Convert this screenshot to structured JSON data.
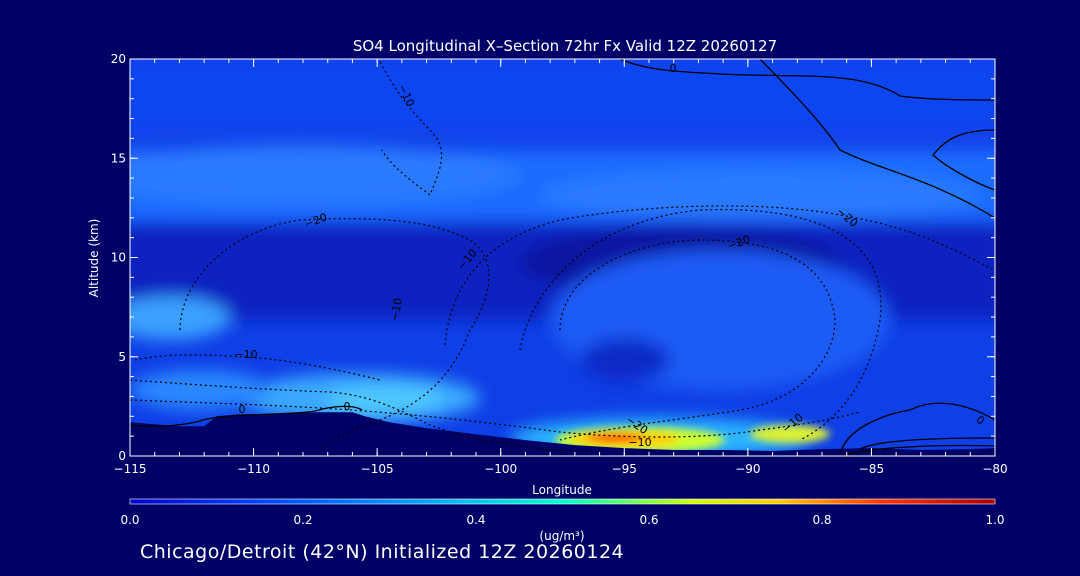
{
  "chart_data": {
    "type": "heatmap",
    "title": "SO4 Longitudinal X–Section 72hr  Fx Valid 12Z 20260127",
    "xlabel": "Longitude",
    "ylabel": "Altitude (km)",
    "xlim": [
      -115,
      -80
    ],
    "ylim": [
      0,
      20
    ],
    "x_ticks": [
      -115,
      -110,
      -105,
      -100,
      -95,
      -90,
      -85,
      -80
    ],
    "x_tick_labels": [
      "−115",
      "−110",
      "−105",
      "−100",
      "−95",
      "−90",
      "−85",
      "−80"
    ],
    "y_ticks": [
      0,
      5,
      10,
      15,
      20
    ],
    "y_tick_labels": [
      "0",
      "5",
      "10",
      "15",
      "20"
    ],
    "colorbar": {
      "label": "(ug/m³)",
      "range": [
        0.0,
        1.0
      ],
      "ticks": [
        0.0,
        0.2,
        0.4,
        0.6,
        0.8,
        1.0
      ],
      "tick_labels": [
        "0.0",
        "0.2",
        "0.4",
        "0.6",
        "0.8",
        "1.0"
      ]
    },
    "terrain": {
      "lon": [
        -115,
        -113,
        -112,
        -111.5,
        -110.5,
        -109,
        -107.5,
        -106,
        -105.5,
        -104.5,
        -103,
        -101,
        -99,
        -97,
        -95,
        -93,
        -91,
        -89,
        -87,
        -85,
        -83,
        -81,
        -80
      ],
      "alt": [
        1.7,
        1.5,
        1.5,
        2.0,
        2.1,
        2.1,
        2.2,
        2.2,
        2.0,
        1.7,
        1.4,
        1.1,
        0.8,
        0.55,
        0.4,
        0.3,
        0.3,
        0.25,
        0.35,
        0.4,
        0.3,
        0.35,
        0.4
      ]
    },
    "so4_concentration_regions": [
      {
        "feature": "upper layer",
        "lon": [
          -115,
          -80
        ],
        "alt": [
          13,
          20
        ],
        "value": 0.12
      },
      {
        "feature": "mid layer",
        "lon": [
          -115,
          -80
        ],
        "alt": [
          10.5,
          14
        ],
        "value": 0.22
      },
      {
        "feature": "layer",
        "lon": [
          -115,
          -80
        ],
        "alt": [
          5.5,
          11
        ],
        "value": 0.06
      },
      {
        "feature": "western maximum",
        "lon": [
          -115,
          -110
        ],
        "alt": [
          6,
          8.5
        ],
        "value": 0.32
      },
      {
        "feature": "low-level plume",
        "lon": [
          -112,
          -100
        ],
        "alt": [
          2,
          4.5
        ],
        "value": 0.35
      },
      {
        "feature": "inner column",
        "lon": [
          -100,
          -88
        ],
        "alt": [
          2,
          8
        ],
        "value": 0.18
      },
      {
        "feature": "surface maximum",
        "lon": [
          -97,
          -92
        ],
        "alt": [
          0.4,
          1.3
        ],
        "value": 0.85
      },
      {
        "feature": "secondary surface maximum",
        "lon": [
          -91,
          -86
        ],
        "alt": [
          0.6,
          1.6
        ],
        "value": 0.55
      }
    ],
    "contour_labels": [
      "0",
      "−10",
      "−20",
      "−20",
      "−10",
      "−10",
      "−20",
      "−10",
      "0",
      "0",
      "−20",
      "−10",
      "−10",
      "0"
    ]
  },
  "footer": {
    "text": "Chicago/Detroit (42°N) Initialized 12Z 20260124"
  }
}
